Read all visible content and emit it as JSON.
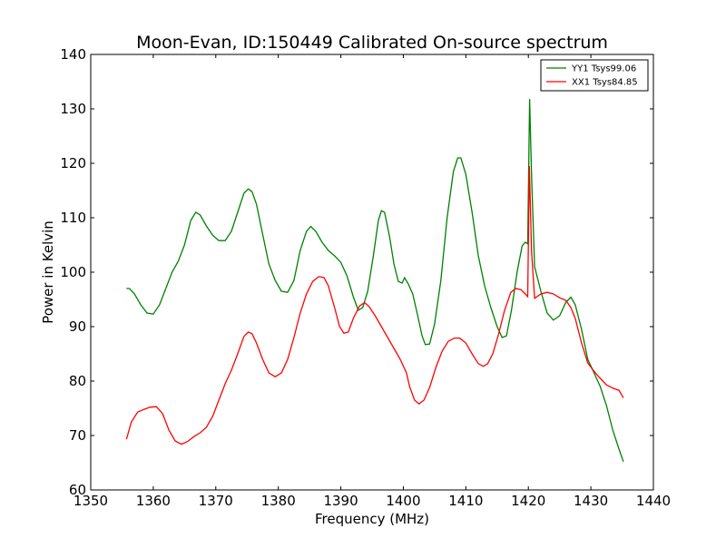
{
  "chart_data": {
    "type": "line",
    "title": "Moon-Evan, ID:150449 Calibrated On-source spectrum",
    "xlabel": "Frequency (MHz)",
    "ylabel": "Power in Kelvin",
    "xlim": [
      1350,
      1440
    ],
    "ylim": [
      60,
      140
    ],
    "xticks": [
      1350,
      1360,
      1370,
      1380,
      1390,
      1400,
      1410,
      1420,
      1430,
      1440
    ],
    "yticks": [
      60,
      70,
      80,
      90,
      100,
      110,
      120,
      130,
      140
    ],
    "grid": false,
    "legend_position": "top-right",
    "series": [
      {
        "name": "YY1 Tsys99.06",
        "color": "#008000",
        "points": [
          [
            1355.7,
            97.0
          ],
          [
            1356.2,
            97.0
          ],
          [
            1357.0,
            96.0
          ],
          [
            1358.0,
            94.0
          ],
          [
            1359.0,
            92.5
          ],
          [
            1360.0,
            92.3
          ],
          [
            1361.0,
            94.0
          ],
          [
            1362.0,
            97.0
          ],
          [
            1363.0,
            100.0
          ],
          [
            1364.0,
            102.0
          ],
          [
            1365.0,
            105.0
          ],
          [
            1366.0,
            109.5
          ],
          [
            1366.8,
            111.0
          ],
          [
            1367.5,
            110.5
          ],
          [
            1368.5,
            108.5
          ],
          [
            1369.5,
            106.8
          ],
          [
            1370.5,
            105.8
          ],
          [
            1371.5,
            105.8
          ],
          [
            1372.5,
            107.5
          ],
          [
            1373.5,
            111.0
          ],
          [
            1374.5,
            114.5
          ],
          [
            1375.2,
            115.3
          ],
          [
            1375.8,
            114.8
          ],
          [
            1376.5,
            112.5
          ],
          [
            1377.5,
            107.0
          ],
          [
            1378.5,
            101.5
          ],
          [
            1379.5,
            98.5
          ],
          [
            1380.5,
            96.5
          ],
          [
            1381.5,
            96.3
          ],
          [
            1382.5,
            98.5
          ],
          [
            1383.5,
            104.0
          ],
          [
            1384.5,
            107.5
          ],
          [
            1385.2,
            108.4
          ],
          [
            1386.0,
            107.5
          ],
          [
            1387.0,
            105.5
          ],
          [
            1388.0,
            104.0
          ],
          [
            1389.0,
            103.0
          ],
          [
            1390.0,
            101.8
          ],
          [
            1391.0,
            99.3
          ],
          [
            1392.0,
            95.5
          ],
          [
            1392.8,
            93.0
          ],
          [
            1393.5,
            93.5
          ],
          [
            1394.3,
            96.5
          ],
          [
            1395.2,
            103.0
          ],
          [
            1396.0,
            109.5
          ],
          [
            1396.5,
            111.3
          ],
          [
            1397.0,
            111.0
          ],
          [
            1397.8,
            106.5
          ],
          [
            1398.5,
            101.5
          ],
          [
            1399.2,
            98.3
          ],
          [
            1399.8,
            98.0
          ],
          [
            1400.2,
            99.0
          ],
          [
            1400.8,
            97.8
          ],
          [
            1401.5,
            96.0
          ],
          [
            1402.3,
            92.0
          ],
          [
            1403.0,
            88.3
          ],
          [
            1403.5,
            86.7
          ],
          [
            1404.2,
            86.8
          ],
          [
            1405.0,
            90.5
          ],
          [
            1406.0,
            98.5
          ],
          [
            1407.0,
            110.0
          ],
          [
            1408.0,
            118.5
          ],
          [
            1408.7,
            121.0
          ],
          [
            1409.2,
            121.0
          ],
          [
            1410.0,
            118.0
          ],
          [
            1411.0,
            111.0
          ],
          [
            1412.0,
            103.0
          ],
          [
            1413.0,
            97.5
          ],
          [
            1414.0,
            93.5
          ],
          [
            1415.0,
            90.0
          ],
          [
            1415.8,
            88.0
          ],
          [
            1416.5,
            88.3
          ],
          [
            1417.3,
            93.0
          ],
          [
            1418.2,
            100.0
          ],
          [
            1419.0,
            104.8
          ],
          [
            1419.5,
            105.5
          ],
          [
            1419.9,
            105.2
          ],
          [
            1420.2,
            131.8
          ],
          [
            1420.5,
            118.0
          ],
          [
            1421.0,
            101.0
          ],
          [
            1422.0,
            96.5
          ],
          [
            1423.0,
            92.5
          ],
          [
            1424.0,
            91.2
          ],
          [
            1425.0,
            92.0
          ],
          [
            1426.0,
            94.5
          ],
          [
            1426.8,
            95.4
          ],
          [
            1427.5,
            94.0
          ],
          [
            1428.5,
            89.5
          ],
          [
            1429.5,
            84.0
          ],
          [
            1430.5,
            81.5
          ],
          [
            1431.5,
            79.0
          ],
          [
            1432.5,
            75.5
          ],
          [
            1433.5,
            71.0
          ],
          [
            1434.5,
            67.5
          ],
          [
            1435.2,
            65.2
          ]
        ]
      },
      {
        "name": "XX1 Tsys84.85",
        "color": "#ff0000",
        "points": [
          [
            1355.7,
            69.3
          ],
          [
            1356.5,
            72.5
          ],
          [
            1357.5,
            74.3
          ],
          [
            1358.5,
            74.8
          ],
          [
            1359.5,
            75.2
          ],
          [
            1360.5,
            75.3
          ],
          [
            1361.5,
            74.0
          ],
          [
            1362.5,
            71.0
          ],
          [
            1363.5,
            69.0
          ],
          [
            1364.5,
            68.4
          ],
          [
            1365.5,
            68.9
          ],
          [
            1366.5,
            69.8
          ],
          [
            1367.5,
            70.5
          ],
          [
            1368.5,
            71.5
          ],
          [
            1369.5,
            73.5
          ],
          [
            1370.5,
            76.5
          ],
          [
            1371.5,
            79.5
          ],
          [
            1372.5,
            82.0
          ],
          [
            1373.5,
            85.0
          ],
          [
            1374.5,
            88.2
          ],
          [
            1375.2,
            89.0
          ],
          [
            1375.8,
            88.7
          ],
          [
            1376.5,
            87.0
          ],
          [
            1377.5,
            84.0
          ],
          [
            1378.5,
            81.5
          ],
          [
            1379.5,
            80.8
          ],
          [
            1380.5,
            81.5
          ],
          [
            1381.5,
            84.0
          ],
          [
            1382.5,
            88.0
          ],
          [
            1383.5,
            92.5
          ],
          [
            1384.5,
            96.0
          ],
          [
            1385.5,
            98.3
          ],
          [
            1386.5,
            99.2
          ],
          [
            1387.3,
            99.0
          ],
          [
            1388.0,
            97.5
          ],
          [
            1389.0,
            93.5
          ],
          [
            1389.8,
            90.0
          ],
          [
            1390.5,
            88.8
          ],
          [
            1391.2,
            89.0
          ],
          [
            1392.0,
            91.5
          ],
          [
            1393.0,
            93.8
          ],
          [
            1393.8,
            94.4
          ],
          [
            1394.5,
            93.7
          ],
          [
            1395.5,
            92.0
          ],
          [
            1396.5,
            90.0
          ],
          [
            1397.5,
            88.0
          ],
          [
            1398.5,
            86.0
          ],
          [
            1399.5,
            84.0
          ],
          [
            1400.5,
            81.5
          ],
          [
            1401.0,
            79.0
          ],
          [
            1401.8,
            76.5
          ],
          [
            1402.5,
            75.8
          ],
          [
            1403.3,
            76.5
          ],
          [
            1404.2,
            78.8
          ],
          [
            1405.2,
            82.5
          ],
          [
            1406.2,
            85.5
          ],
          [
            1407.2,
            87.3
          ],
          [
            1408.2,
            87.9
          ],
          [
            1409.0,
            87.9
          ],
          [
            1410.0,
            87.0
          ],
          [
            1411.0,
            85.0
          ],
          [
            1412.0,
            83.2
          ],
          [
            1412.8,
            82.7
          ],
          [
            1413.5,
            83.2
          ],
          [
            1414.3,
            85.0
          ],
          [
            1415.2,
            88.5
          ],
          [
            1416.2,
            93.0
          ],
          [
            1417.2,
            96.3
          ],
          [
            1418.0,
            97.0
          ],
          [
            1418.8,
            96.8
          ],
          [
            1419.5,
            96.0
          ],
          [
            1419.9,
            95.5
          ],
          [
            1420.15,
            119.5
          ],
          [
            1420.5,
            104.0
          ],
          [
            1421.0,
            95.2
          ],
          [
            1422.0,
            96.0
          ],
          [
            1423.0,
            96.3
          ],
          [
            1424.0,
            96.0
          ],
          [
            1425.0,
            95.3
          ],
          [
            1426.0,
            94.8
          ],
          [
            1426.8,
            93.5
          ],
          [
            1427.5,
            91.5
          ],
          [
            1428.5,
            87.0
          ],
          [
            1429.5,
            83.3
          ],
          [
            1430.5,
            81.8
          ],
          [
            1431.5,
            80.5
          ],
          [
            1432.5,
            79.3
          ],
          [
            1433.5,
            78.7
          ],
          [
            1434.5,
            78.3
          ],
          [
            1435.2,
            76.9
          ]
        ]
      }
    ]
  }
}
